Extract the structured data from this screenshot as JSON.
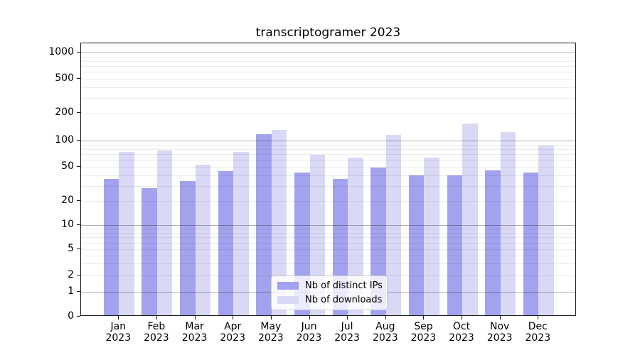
{
  "chart_data": {
    "type": "bar",
    "title": "transcriptogramer 2023",
    "categories": [
      "Jan",
      "Feb",
      "Mar",
      "Apr",
      "May",
      "Jun",
      "Jul",
      "Aug",
      "Sep",
      "Oct",
      "Nov",
      "Dec"
    ],
    "year_label": "2023",
    "series": [
      {
        "name": "Nb of distinct IPs",
        "color": "#a2a2ee",
        "values": [
          35,
          27,
          33,
          43,
          113,
          41,
          35,
          47,
          38,
          38,
          44,
          41
        ]
      },
      {
        "name": "Nb of downloads",
        "color": "#d9d9f6",
        "values": [
          72,
          74,
          51,
          72,
          126,
          67,
          62,
          112,
          61,
          148,
          120,
          85
        ]
      }
    ],
    "yscale": "symlog",
    "y_ticks": [
      0,
      1,
      2,
      5,
      10,
      20,
      50,
      100,
      200,
      500,
      1000
    ],
    "ylim": [
      0,
      1250
    ],
    "grid": true,
    "legend_position": "lower center"
  },
  "colors": {
    "major_grid": "rgba(0,0,0,0.30)",
    "minor_grid": "rgba(0,0,0,0.08)",
    "spine": "#1a1a1a",
    "legend_border": "#cccccc",
    "background": "#ffffff"
  }
}
